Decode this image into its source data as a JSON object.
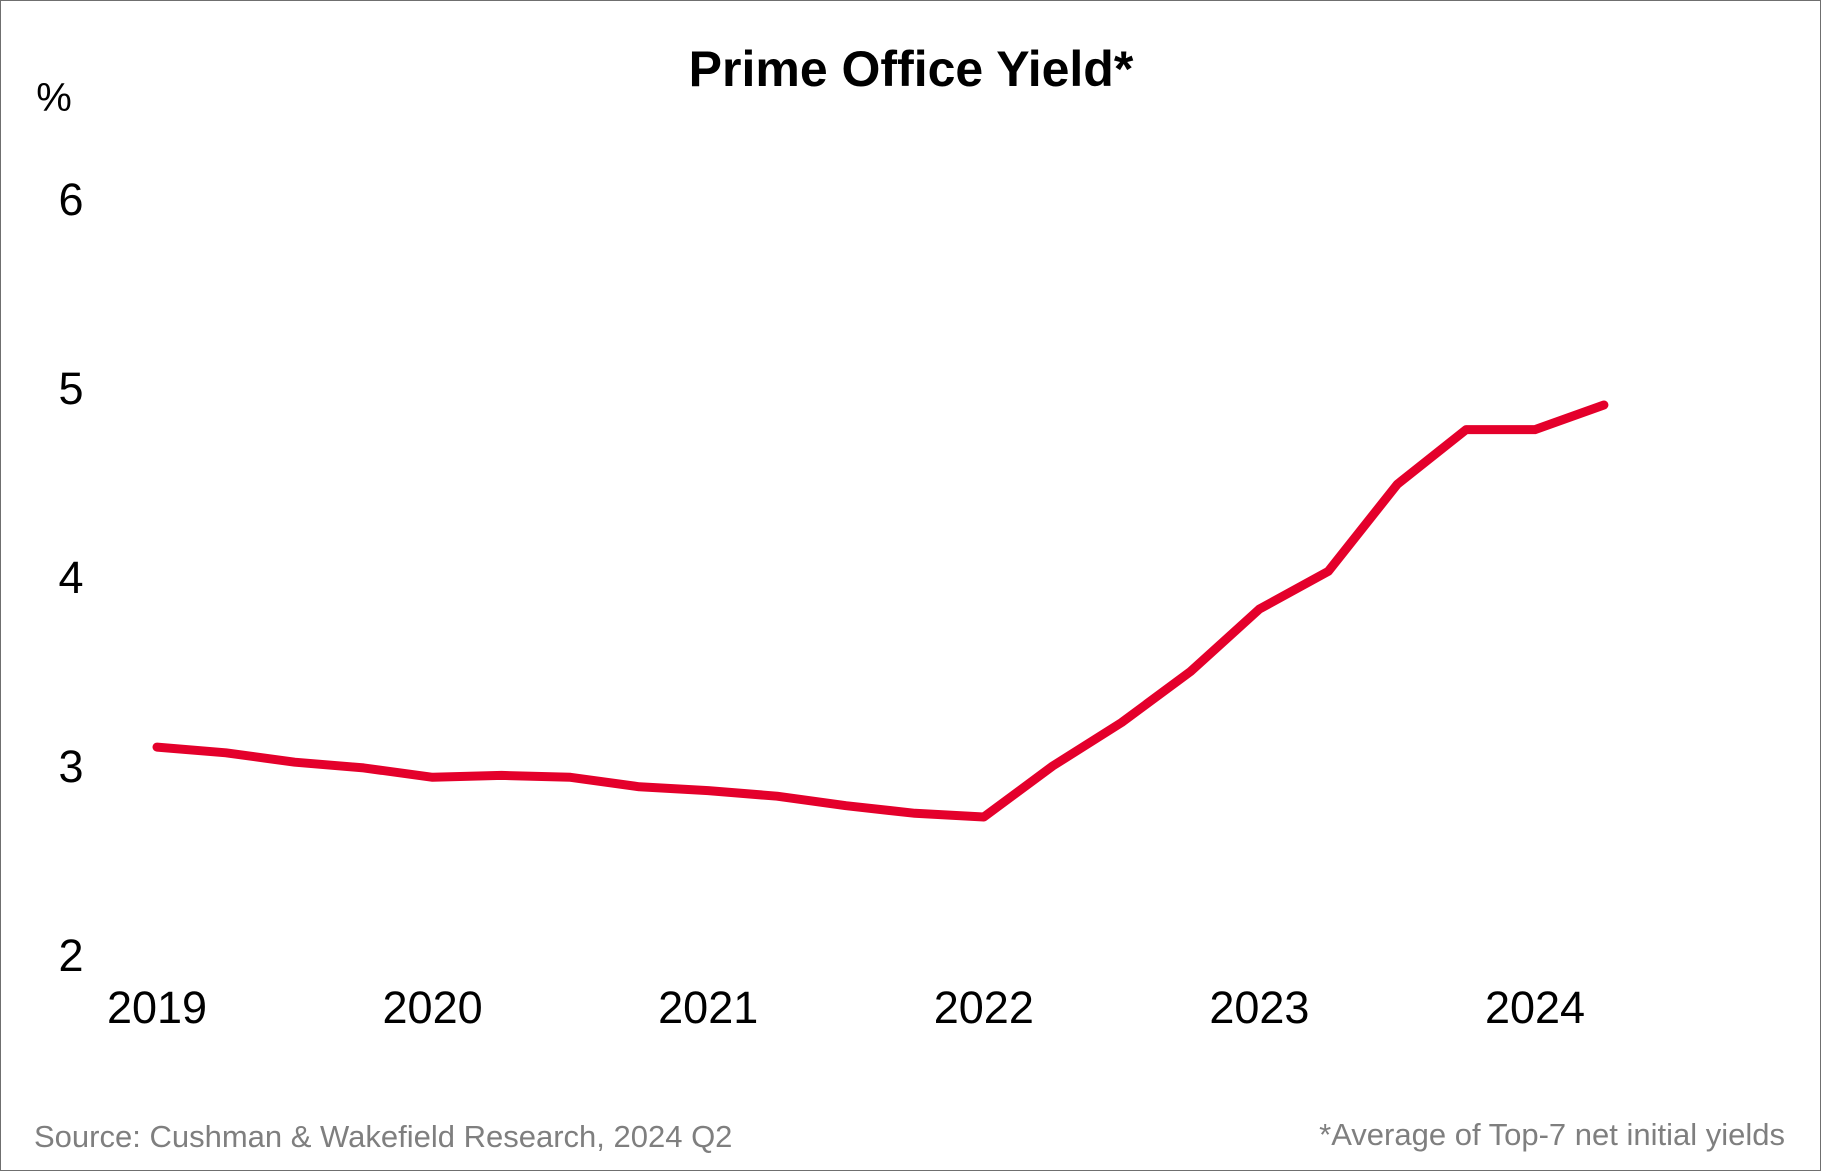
{
  "chart_data": {
    "type": "line",
    "title": "Prime Office Yield*",
    "ylabel": "%",
    "xlabel": "",
    "ylim": [
      2,
      6
    ],
    "yticks": [
      "2",
      "3",
      "4",
      "5",
      "6"
    ],
    "xticks": [
      "2019",
      "2020",
      "2021",
      "2022",
      "2023",
      "2024"
    ],
    "x_tick_positions": [
      0,
      4,
      8,
      12,
      16,
      20
    ],
    "grid": false,
    "legend": "none",
    "series": [
      {
        "color": "#e4002b",
        "x": [
          0,
          1,
          2,
          3,
          4,
          5,
          6,
          7,
          8,
          9,
          10,
          11,
          12,
          13,
          14,
          15,
          16,
          17,
          18,
          19,
          20,
          21
        ],
        "values": [
          3.1,
          3.07,
          3.02,
          2.99,
          2.94,
          2.95,
          2.94,
          2.89,
          2.87,
          2.84,
          2.79,
          2.75,
          2.73,
          3.0,
          3.23,
          3.5,
          3.83,
          4.03,
          4.49,
          4.78,
          4.78,
          4.91
        ]
      }
    ]
  },
  "source_note": "Source: Cushman & Wakefield Research, 2024 Q2",
  "footnote": "*Average of Top-7 net initial yields"
}
